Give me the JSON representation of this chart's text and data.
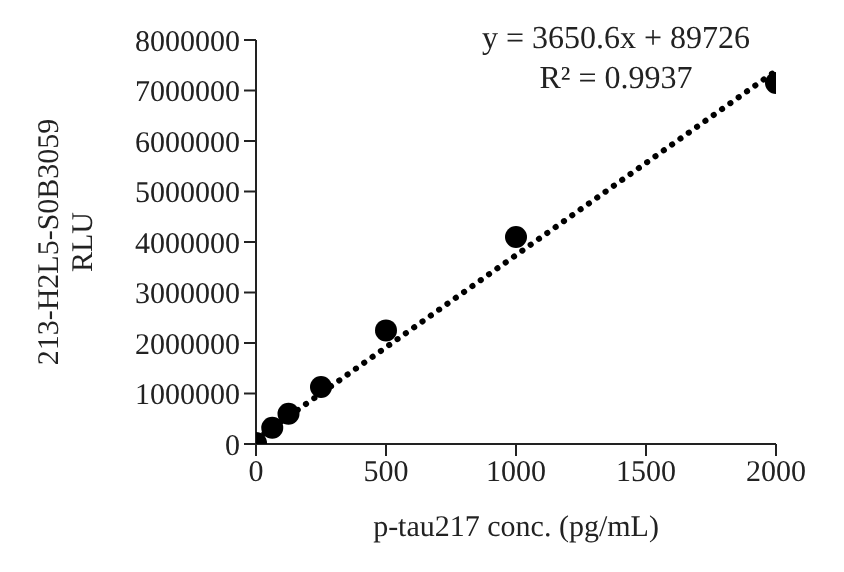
{
  "chart_data": {
    "type": "scatter",
    "xlabel": "p-tau217 conc. (pg/mL)",
    "ylabel": "213-H2L5-S0B3059\nRLU",
    "series": [
      {
        "color": "#000000",
        "x": [
          0,
          62.5,
          125,
          250,
          500,
          1000,
          2000
        ],
        "values": [
          20000,
          320000,
          600000,
          1130000,
          2250000,
          4100000,
          7150000
        ]
      },
      {
        "type": "line",
        "color": "#000000",
        "line_style": "dotted",
        "marker": "none",
        "x": [
          0,
          2000
        ],
        "values": [
          90000,
          7390000
        ]
      }
    ],
    "xlim": [
      0,
      2000
    ],
    "xticks": [
      0,
      500,
      1000,
      1500,
      2000
    ],
    "ylim": [
      0,
      8000000
    ],
    "yticks": [
      0,
      1000000,
      2000000,
      3000000,
      4000000,
      5000000,
      6000000,
      7000000,
      8000000
    ],
    "marker": "circle",
    "grid": false,
    "legend": false,
    "annotations": [
      "y = 3650.6x + 89726",
      "R² = 0.9937"
    ]
  }
}
